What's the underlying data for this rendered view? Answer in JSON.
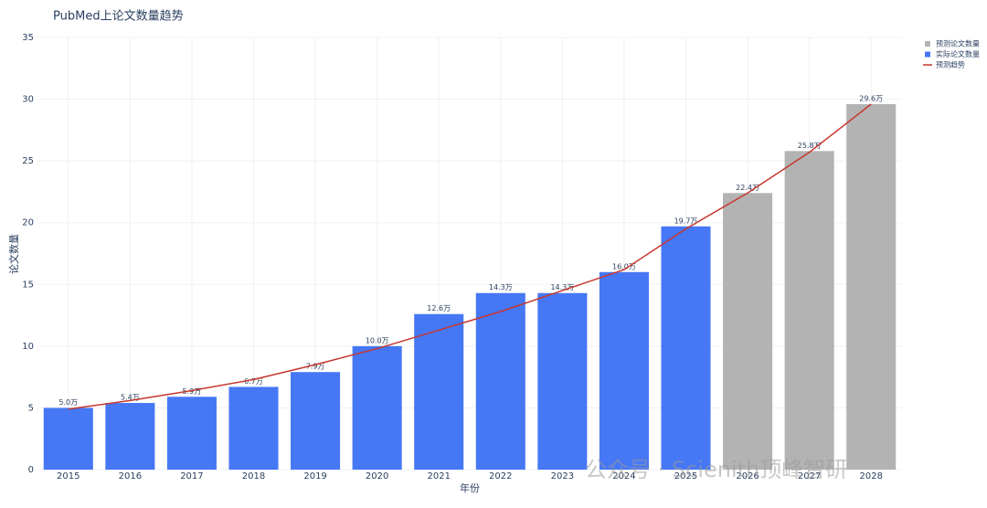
{
  "chart_data": {
    "type": "bar",
    "title": "PubMed上论文数量趋势",
    "x_label": "年份",
    "y_label": "论文数量",
    "watermark": "公众号 · Scienith顶峰智研",
    "categories": [
      "2015",
      "2016",
      "2017",
      "2018",
      "2019",
      "2020",
      "2021",
      "2022",
      "2023",
      "2024",
      "2025",
      "2026",
      "2027",
      "2028"
    ],
    "ylim": [
      0,
      35
    ],
    "yticks": [
      0,
      5,
      10,
      15,
      20,
      25,
      30,
      35
    ],
    "grid": true,
    "legend": "top-right",
    "series": [
      {
        "name": "预测论文数量",
        "type": "bar",
        "color": "#b3b3b3",
        "values": [
          null,
          null,
          null,
          null,
          null,
          null,
          null,
          null,
          null,
          null,
          null,
          22.4,
          25.8,
          29.6
        ],
        "value_labels": [
          null,
          null,
          null,
          null,
          null,
          null,
          null,
          null,
          null,
          null,
          null,
          "22.4万",
          "25.8万",
          "29.6万"
        ]
      },
      {
        "name": "实际论文数量",
        "type": "bar",
        "color": "#4677f5",
        "values": [
          5.0,
          5.4,
          5.9,
          6.7,
          7.9,
          10.0,
          12.6,
          14.3,
          14.3,
          16.0,
          19.7,
          null,
          null,
          null
        ],
        "value_labels": [
          "5.0万",
          "5.4万",
          "5.9万",
          "6.7万",
          "7.9万",
          "10.0万",
          "12.6万",
          "14.3万",
          "14.3万",
          "16.0万",
          "19.7万",
          null,
          null,
          null
        ]
      },
      {
        "name": "预测趋势",
        "type": "line",
        "color": "#c8372d",
        "values": [
          4.9,
          5.6,
          6.4,
          7.3,
          8.5,
          9.8,
          11.3,
          12.8,
          14.5,
          16.2,
          19.5,
          22.4,
          25.7,
          29.6
        ]
      }
    ]
  }
}
